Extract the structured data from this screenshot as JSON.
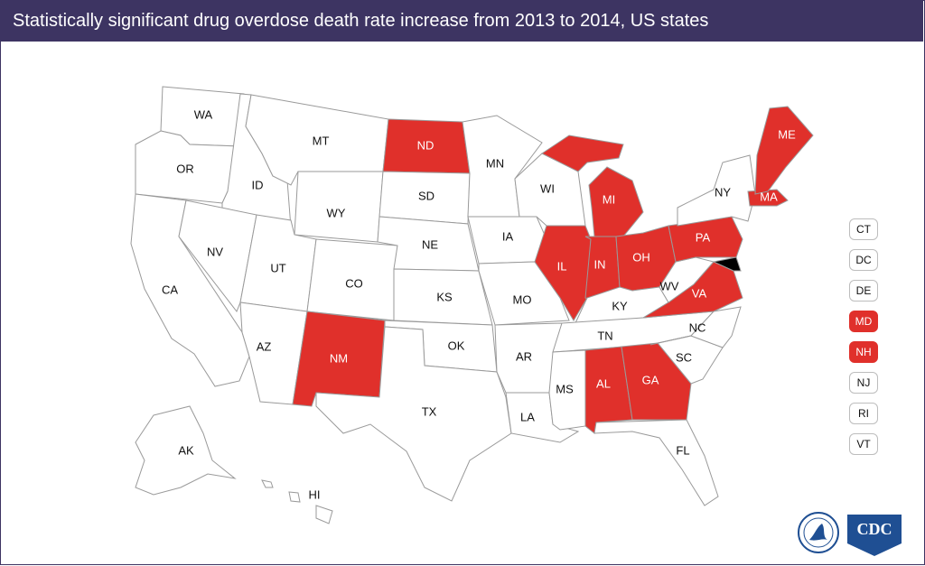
{
  "title": "Statistically significant drug overdose death rate increase from 2013 to 2014, US states",
  "colors": {
    "increase": "#e0302b",
    "no_increase": "#ffffff",
    "header": "#3d3462",
    "border": "#9a9a9a"
  },
  "states": [
    {
      "code": "WA",
      "increase": false
    },
    {
      "code": "OR",
      "increase": false
    },
    {
      "code": "CA",
      "increase": false
    },
    {
      "code": "ID",
      "increase": false
    },
    {
      "code": "NV",
      "increase": false
    },
    {
      "code": "MT",
      "increase": false
    },
    {
      "code": "WY",
      "increase": false
    },
    {
      "code": "UT",
      "increase": false
    },
    {
      "code": "AZ",
      "increase": false
    },
    {
      "code": "CO",
      "increase": false
    },
    {
      "code": "NM",
      "increase": true
    },
    {
      "code": "ND",
      "increase": true
    },
    {
      "code": "SD",
      "increase": false
    },
    {
      "code": "NE",
      "increase": false
    },
    {
      "code": "KS",
      "increase": false
    },
    {
      "code": "OK",
      "increase": false
    },
    {
      "code": "TX",
      "increase": false
    },
    {
      "code": "MN",
      "increase": false
    },
    {
      "code": "IA",
      "increase": false
    },
    {
      "code": "MO",
      "increase": false
    },
    {
      "code": "AR",
      "increase": false
    },
    {
      "code": "LA",
      "increase": false
    },
    {
      "code": "WI",
      "increase": false
    },
    {
      "code": "IL",
      "increase": true
    },
    {
      "code": "MI",
      "increase": true
    },
    {
      "code": "IN",
      "increase": true
    },
    {
      "code": "OH",
      "increase": true
    },
    {
      "code": "KY",
      "increase": false
    },
    {
      "code": "TN",
      "increase": false
    },
    {
      "code": "MS",
      "increase": false
    },
    {
      "code": "AL",
      "increase": true
    },
    {
      "code": "GA",
      "increase": true
    },
    {
      "code": "FL",
      "increase": false
    },
    {
      "code": "SC",
      "increase": false
    },
    {
      "code": "NC",
      "increase": false
    },
    {
      "code": "VA",
      "increase": true
    },
    {
      "code": "WV",
      "increase": false
    },
    {
      "code": "PA",
      "increase": true
    },
    {
      "code": "NY",
      "increase": false
    },
    {
      "code": "ME",
      "increase": true
    },
    {
      "code": "MA",
      "increase": true
    },
    {
      "code": "AK",
      "increase": false
    },
    {
      "code": "HI",
      "increase": false
    }
  ],
  "small_states": [
    {
      "code": "CT",
      "increase": false
    },
    {
      "code": "DC",
      "increase": false
    },
    {
      "code": "DE",
      "increase": false
    },
    {
      "code": "MD",
      "increase": true
    },
    {
      "code": "NH",
      "increase": true
    },
    {
      "code": "NJ",
      "increase": false
    },
    {
      "code": "RI",
      "increase": false
    },
    {
      "code": "VT",
      "increase": false
    }
  ],
  "logos": {
    "cdc_text": "CDC"
  }
}
